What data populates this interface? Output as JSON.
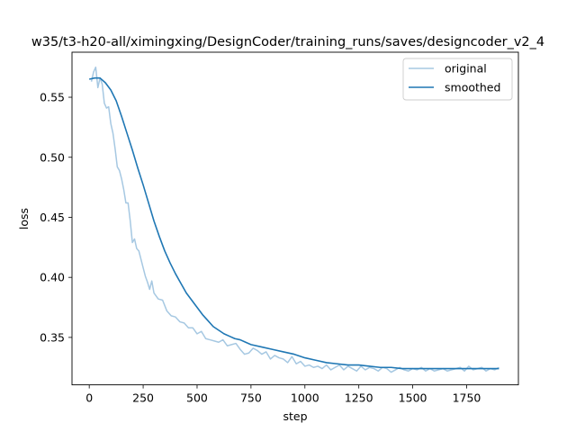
{
  "chart_data": {
    "type": "line",
    "title": "w35/t3-h20-all/ximingxing/DesignCoder/training_runs/saves/designcoder_v2_4",
    "xlabel": "step",
    "ylabel": "loss",
    "xlim": [
      -80,
      1990
    ],
    "ylim": [
      0.3105,
      0.5875
    ],
    "xticks": [
      0,
      250,
      500,
      750,
      1000,
      1250,
      1500,
      1750
    ],
    "yticks": [
      0.35,
      0.4,
      0.45,
      0.5,
      0.55
    ],
    "xtick_labels": [
      "0",
      "250",
      "500",
      "750",
      "1000",
      "1250",
      "1500",
      "1750"
    ],
    "ytick_labels": [
      "0.35",
      "0.40",
      "0.45",
      "0.50",
      "0.55"
    ],
    "grid": false,
    "legend_position": "top-right",
    "colors": {
      "original": "#a6c8e2",
      "smoothed": "#1f77b4"
    },
    "series": [
      {
        "name": "original",
        "x": [
          10,
          20,
          30,
          40,
          50,
          60,
          70,
          80,
          90,
          100,
          110,
          120,
          130,
          140,
          150,
          160,
          170,
          180,
          190,
          200,
          210,
          220,
          230,
          240,
          250,
          260,
          270,
          280,
          290,
          300,
          320,
          340,
          360,
          380,
          400,
          420,
          440,
          460,
          480,
          500,
          520,
          540,
          560,
          580,
          600,
          620,
          640,
          660,
          680,
          700,
          720,
          740,
          760,
          780,
          800,
          820,
          840,
          860,
          880,
          900,
          920,
          940,
          960,
          980,
          1000,
          1020,
          1040,
          1060,
          1080,
          1100,
          1120,
          1140,
          1160,
          1180,
          1200,
          1220,
          1240,
          1260,
          1280,
          1300,
          1320,
          1340,
          1360,
          1380,
          1400,
          1420,
          1440,
          1460,
          1480,
          1500,
          1520,
          1540,
          1560,
          1580,
          1600,
          1620,
          1640,
          1660,
          1680,
          1700,
          1720,
          1740,
          1760,
          1780,
          1800,
          1820,
          1840,
          1860,
          1880,
          1900
        ],
        "values": [
          0.563,
          0.571,
          0.575,
          0.558,
          0.566,
          0.561,
          0.545,
          0.541,
          0.542,
          0.528,
          0.52,
          0.507,
          0.492,
          0.489,
          0.482,
          0.473,
          0.462,
          0.462,
          0.447,
          0.429,
          0.432,
          0.424,
          0.422,
          0.415,
          0.408,
          0.401,
          0.396,
          0.39,
          0.397,
          0.387,
          0.382,
          0.381,
          0.372,
          0.368,
          0.367,
          0.363,
          0.362,
          0.358,
          0.358,
          0.353,
          0.355,
          0.349,
          0.348,
          0.347,
          0.346,
          0.348,
          0.343,
          0.344,
          0.345,
          0.34,
          0.336,
          0.337,
          0.341,
          0.339,
          0.336,
          0.338,
          0.332,
          0.335,
          0.333,
          0.332,
          0.329,
          0.334,
          0.328,
          0.33,
          0.326,
          0.327,
          0.325,
          0.326,
          0.324,
          0.327,
          0.323,
          0.325,
          0.327,
          0.323,
          0.326,
          0.324,
          0.322,
          0.326,
          0.323,
          0.325,
          0.324,
          0.322,
          0.325,
          0.324,
          0.321,
          0.323,
          0.325,
          0.323,
          0.322,
          0.324,
          0.323,
          0.325,
          0.322,
          0.324,
          0.322,
          0.323,
          0.324,
          0.322,
          0.323,
          0.324,
          0.325,
          0.322,
          0.326,
          0.323,
          0.324,
          0.325,
          0.322,
          0.324,
          0.323,
          0.325
        ]
      },
      {
        "name": "smoothed",
        "x": [
          0,
          25,
          50,
          75,
          100,
          125,
          150,
          175,
          200,
          225,
          250,
          275,
          300,
          325,
          350,
          375,
          400,
          425,
          450,
          475,
          500,
          525,
          550,
          575,
          600,
          625,
          650,
          675,
          700,
          725,
          750,
          800,
          850,
          900,
          950,
          1000,
          1050,
          1100,
          1150,
          1200,
          1250,
          1300,
          1350,
          1400,
          1450,
          1500,
          1550,
          1600,
          1650,
          1700,
          1750,
          1800,
          1850,
          1900
        ],
        "values": [
          0.565,
          0.566,
          0.566,
          0.562,
          0.556,
          0.547,
          0.534,
          0.52,
          0.506,
          0.491,
          0.477,
          0.462,
          0.447,
          0.434,
          0.422,
          0.412,
          0.403,
          0.395,
          0.387,
          0.381,
          0.375,
          0.369,
          0.364,
          0.359,
          0.356,
          0.353,
          0.351,
          0.349,
          0.348,
          0.346,
          0.344,
          0.342,
          0.34,
          0.338,
          0.336,
          0.333,
          0.331,
          0.329,
          0.328,
          0.327,
          0.327,
          0.326,
          0.325,
          0.325,
          0.324,
          0.324,
          0.324,
          0.324,
          0.324,
          0.324,
          0.324,
          0.324,
          0.324,
          0.324
        ]
      }
    ]
  }
}
